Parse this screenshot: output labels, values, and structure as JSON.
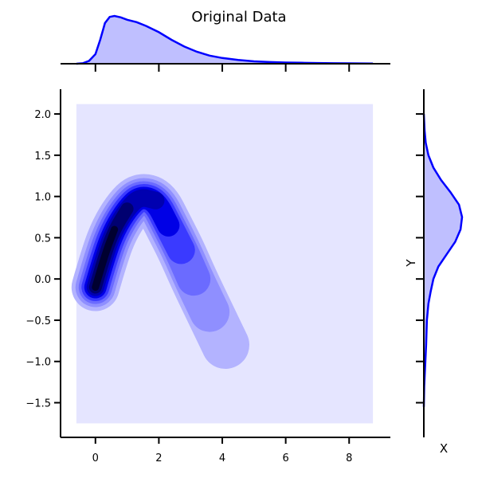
{
  "chart_data": {
    "type": "kde-jointplot",
    "title": "Original Data",
    "xlabel": "X",
    "ylabel": "Y",
    "joint": {
      "xlim": [
        -1.1,
        9.3
      ],
      "ylim": [
        -1.92,
        2.3
      ],
      "xticks": [
        0,
        2,
        4,
        6,
        8
      ],
      "yticks": [
        -1.5,
        -1.0,
        -0.5,
        0.0,
        0.5,
        1.0,
        1.5,
        2.0
      ],
      "xtick_labels": [
        "0",
        "2",
        "4",
        "6",
        "8"
      ],
      "ytick_labels": [
        "−1.5",
        "−1.0",
        "−0.5",
        "0.0",
        "0.5",
        "1.0",
        "1.5",
        "2.0"
      ],
      "background_extent": {
        "x": [
          -0.6,
          8.75
        ],
        "y": [
          -1.75,
          2.12
        ]
      },
      "background_color": "#e5e5ff",
      "ridge_path": [
        [
          0.0,
          -0.1
        ],
        [
          0.3,
          0.3
        ],
        [
          0.6,
          0.6
        ],
        [
          1.0,
          0.85
        ],
        [
          1.4,
          1.0
        ],
        [
          1.9,
          0.95
        ],
        [
          2.3,
          0.65
        ],
        [
          2.7,
          0.35
        ],
        [
          3.1,
          0.0
        ],
        [
          3.6,
          -0.4
        ],
        [
          4.1,
          -0.8
        ]
      ],
      "contour_levels": [
        {
          "level": 1,
          "color": "#b3b3ff"
        },
        {
          "level": 2,
          "color": "#8f8fff"
        },
        {
          "level": 3,
          "color": "#6b6bff"
        },
        {
          "level": 4,
          "color": "#3a3aff"
        },
        {
          "level": 5,
          "color": "#0000e6"
        },
        {
          "level": 6,
          "color": "#0000b0"
        },
        {
          "level": 7,
          "color": "#000070"
        },
        {
          "level": 8,
          "color": "#000030"
        }
      ]
    },
    "marginal_x": {
      "color": "#0000ff",
      "fill": "#bfbfff",
      "density": [
        [
          -0.6,
          0.0
        ],
        [
          -0.4,
          0.01
        ],
        [
          -0.2,
          0.06
        ],
        [
          0.0,
          0.2
        ],
        [
          0.15,
          0.5
        ],
        [
          0.3,
          0.85
        ],
        [
          0.45,
          0.98
        ],
        [
          0.6,
          1.0
        ],
        [
          0.8,
          0.97
        ],
        [
          1.0,
          0.92
        ],
        [
          1.3,
          0.87
        ],
        [
          1.6,
          0.79
        ],
        [
          2.0,
          0.66
        ],
        [
          2.4,
          0.5
        ],
        [
          2.8,
          0.36
        ],
        [
          3.2,
          0.25
        ],
        [
          3.6,
          0.17
        ],
        [
          4.0,
          0.12
        ],
        [
          4.5,
          0.08
        ],
        [
          5.0,
          0.05
        ],
        [
          5.5,
          0.035
        ],
        [
          6.0,
          0.025
        ],
        [
          6.5,
          0.02
        ],
        [
          7.0,
          0.015
        ],
        [
          7.5,
          0.01
        ],
        [
          8.0,
          0.008
        ],
        [
          8.75,
          0.005
        ]
      ]
    },
    "marginal_y": {
      "color": "#0000ff",
      "fill": "#bfbfff",
      "density": [
        [
          -1.55,
          0.0
        ],
        [
          -1.3,
          0.01
        ],
        [
          -1.0,
          0.04
        ],
        [
          -0.8,
          0.06
        ],
        [
          -0.5,
          0.08
        ],
        [
          -0.3,
          0.12
        ],
        [
          -0.15,
          0.18
        ],
        [
          0.0,
          0.25
        ],
        [
          0.15,
          0.38
        ],
        [
          0.3,
          0.6
        ],
        [
          0.45,
          0.82
        ],
        [
          0.6,
          0.96
        ],
        [
          0.75,
          1.0
        ],
        [
          0.9,
          0.92
        ],
        [
          1.05,
          0.7
        ],
        [
          1.2,
          0.45
        ],
        [
          1.35,
          0.25
        ],
        [
          1.5,
          0.12
        ],
        [
          1.65,
          0.05
        ],
        [
          1.8,
          0.02
        ],
        [
          2.0,
          0.0
        ]
      ]
    }
  }
}
